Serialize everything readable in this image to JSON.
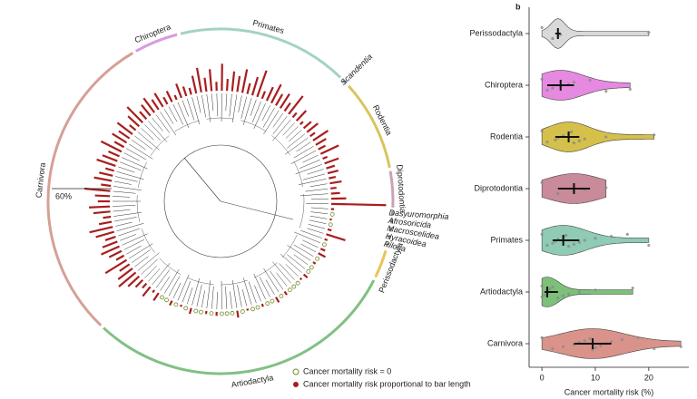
{
  "chart_data": [
    {
      "type": "radial-bar",
      "series": [
        {
          "name": "Chiroptera",
          "color": "#d89be0",
          "values": [
            8,
            12,
            5,
            15,
            10,
            7
          ]
        },
        {
          "name": "Primates",
          "color": "#a3d3c2",
          "values": [
            18,
            25,
            14,
            22,
            9,
            27,
            12,
            20,
            16,
            24,
            11,
            19,
            28,
            8,
            15,
            21,
            13,
            17,
            10,
            23,
            6,
            14
          ]
        },
        {
          "name": "Scandentia",
          "color": "#7d9bb5",
          "values": [
            4
          ]
        },
        {
          "name": "Rodentia",
          "color": "#d8c55e",
          "values": [
            10,
            14,
            6,
            18,
            12,
            8,
            20,
            5,
            15,
            9,
            11,
            7
          ]
        },
        {
          "name": "Diprotodontia",
          "color": "#c9a3b3",
          "values": [
            12,
            6,
            9,
            15,
            55
          ]
        },
        {
          "name": "Dasyuromorphia",
          "color": "#999999",
          "values": [
            3
          ]
        },
        {
          "name": "Afrosoricida",
          "color": "#999999",
          "values": [
            0
          ]
        },
        {
          "name": "Macroscelidea",
          "color": "#999999",
          "values": [
            2
          ]
        },
        {
          "name": "Hyracoidea",
          "color": "#999999",
          "values": [
            0
          ]
        },
        {
          "name": "Pilosa",
          "color": "#999999",
          "values": [
            4
          ]
        },
        {
          "name": "Perissodactyla",
          "color": "#ebc357",
          "values": [
            20,
            3,
            0,
            5
          ]
        },
        {
          "name": "Artiodactyla",
          "color": "#82c083",
          "values": [
            8,
            0,
            3,
            0,
            0,
            5,
            2,
            0,
            0,
            0,
            4,
            0,
            6,
            0,
            0,
            3,
            0,
            0,
            2,
            0,
            7,
            0,
            0,
            0,
            4,
            0,
            3,
            0,
            0,
            6,
            0,
            2,
            0,
            5,
            0,
            0,
            9,
            3,
            12,
            6
          ]
        },
        {
          "name": "Carnivora",
          "color": "#d6a096",
          "values": [
            10,
            15,
            22,
            18,
            12,
            25,
            9,
            14,
            20,
            16,
            11,
            19,
            24,
            13,
            8,
            17,
            21,
            12,
            15,
            26,
            10,
            18,
            14,
            9,
            20,
            16,
            12,
            23,
            11,
            17,
            13,
            19,
            8,
            15,
            22,
            10,
            14,
            18,
            12,
            16
          ]
        }
      ],
      "bar_color": "#a81e1e",
      "zero_color": "#6f8a22",
      "scale_bar": {
        "value": 60,
        "label": "60%"
      },
      "legend": [
        "Cancer mortality risk = 0",
        "Cancer mortality risk proportional to bar length"
      ]
    },
    {
      "type": "violin",
      "panel_label": "b",
      "categories": [
        "Perissodactyla",
        "Chiroptera",
        "Rodentia",
        "Diprotodontia",
        "Primates",
        "Artiodactyla",
        "Carnivora"
      ],
      "colors": [
        "#d9d9d9",
        "#e58ae0",
        "#d4c04a",
        "#c98a99",
        "#8fcbb5",
        "#7cc07a",
        "#d9938a"
      ],
      "boxes": [
        {
          "min": 0,
          "q1": 2.5,
          "median": 3,
          "q3": 3.5,
          "max": 20
        },
        {
          "min": 0,
          "q1": 1,
          "median": 3.5,
          "q3": 6,
          "max": 16.5
        },
        {
          "min": 0,
          "q1": 2.5,
          "median": 5,
          "q3": 7,
          "max": 21
        },
        {
          "min": 0,
          "q1": 3,
          "median": 6,
          "q3": 9,
          "max": 12
        },
        {
          "min": 0,
          "q1": 2,
          "median": 4,
          "q3": 7,
          "max": 20
        },
        {
          "min": 0,
          "q1": 0.5,
          "median": 1,
          "q3": 3,
          "max": 17
        },
        {
          "min": 0,
          "q1": 6,
          "median": 9.5,
          "q3": 13,
          "max": 26
        }
      ],
      "points": [
        [
          0,
          2,
          3,
          3.5,
          20
        ],
        [
          0,
          1,
          2,
          3.5,
          5,
          6,
          9,
          12,
          16.5
        ],
        [
          0,
          1,
          2.5,
          3,
          4,
          5,
          5.5,
          6,
          7,
          8,
          12,
          21
        ],
        [
          0,
          3,
          6,
          8,
          12
        ],
        [
          0,
          1,
          2,
          2.5,
          3,
          4,
          4.5,
          5,
          6,
          7,
          8,
          10,
          13,
          16,
          20
        ],
        [
          0,
          0,
          0.5,
          1,
          1,
          1.5,
          2,
          3,
          4,
          5,
          7,
          10,
          17
        ],
        [
          0,
          2,
          4,
          6,
          7,
          8,
          9,
          9.5,
          10,
          11,
          12,
          13,
          15,
          18,
          21,
          26
        ]
      ],
      "xlim": [
        -2.4,
        27.5
      ],
      "xticks": [
        0,
        10,
        20
      ],
      "xlabel": "Cancer mortality risk (%)"
    }
  ]
}
